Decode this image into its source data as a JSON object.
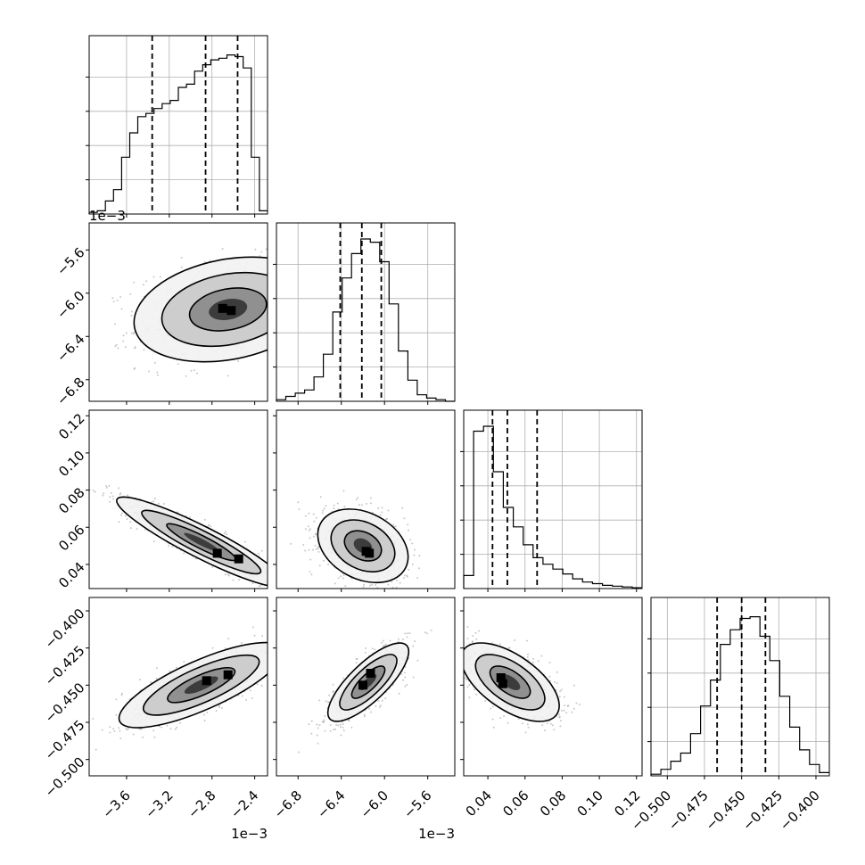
{
  "chart_data": {
    "type": "corner",
    "panels_diagonal": 4,
    "grid": true,
    "parameters": [
      {
        "range": [
          -3.95,
          -2.28
        ],
        "ticks": [
          -3.6,
          -3.2,
          -2.8,
          -2.4
        ],
        "tick_labels": [
          "−3.6",
          "−3.2",
          "−2.8",
          "−2.4"
        ],
        "offset_label": "1e−3",
        "quantiles": [
          -3.36,
          -2.86,
          -2.56
        ]
      },
      {
        "range": [
          -7.0,
          -5.35
        ],
        "ticks": [
          -6.8,
          -6.4,
          -6.0,
          -5.6
        ],
        "tick_labels": [
          "−6.8",
          "−6.4",
          "−6.0",
          "−5.6"
        ],
        "offset_label": "1e−3",
        "quantiles": [
          -6.41,
          -6.21,
          -6.03
        ]
      },
      {
        "range": [
          0.027,
          0.123
        ],
        "ticks": [
          0.04,
          0.06,
          0.08,
          0.1,
          0.12
        ],
        "tick_labels": [
          "0.04",
          "0.06",
          "0.08",
          "0.10",
          "0.12"
        ],
        "offset_label": "",
        "quantiles": [
          0.0425,
          0.0505,
          0.0665
        ]
      },
      {
        "range": [
          -0.511,
          -0.391
        ],
        "ticks": [
          -0.5,
          -0.475,
          -0.45,
          -0.425,
          -0.4
        ],
        "tick_labels": [
          "−0.500",
          "−0.475",
          "−0.450",
          "−0.425",
          "−0.400"
        ],
        "offset_label": "",
        "quantiles": [
          -0.4665,
          -0.45,
          -0.434
        ]
      }
    ],
    "histograms": [
      [
        0.01,
        0.02,
        0.08,
        0.15,
        0.35,
        0.5,
        0.6,
        0.62,
        0.65,
        0.68,
        0.7,
        0.78,
        0.8,
        0.88,
        0.92,
        0.95,
        0.96,
        0.98,
        0.97,
        0.9,
        0.35,
        0.02
      ],
      [
        0.01,
        0.03,
        0.05,
        0.07,
        0.15,
        0.29,
        0.55,
        0.76,
        0.91,
        1.0,
        0.98,
        0.86,
        0.6,
        0.31,
        0.13,
        0.04,
        0.02,
        0.01,
        0.0
      ],
      [
        0.08,
        0.97,
        1.0,
        0.72,
        0.5,
        0.38,
        0.27,
        0.19,
        0.15,
        0.12,
        0.09,
        0.06,
        0.04,
        0.03,
        0.02,
        0.015,
        0.01,
        0.005
      ],
      [
        0.01,
        0.04,
        0.09,
        0.14,
        0.26,
        0.43,
        0.59,
        0.81,
        0.9,
        0.97,
        0.98,
        0.86,
        0.71,
        0.49,
        0.3,
        0.16,
        0.07,
        0.02
      ]
    ],
    "pairs": [
      {
        "x": 0,
        "y": 1,
        "center": [
          -2.65,
          -6.15
        ],
        "spread": [
          0.4,
          0.22
        ],
        "rho": 0.25,
        "peak": [
          [
            -2.62,
            -6.16
          ],
          [
            -2.7,
            -6.14
          ]
        ]
      },
      {
        "x": 0,
        "y": 2,
        "center": [
          -2.9,
          0.052
        ],
        "spread": [
          0.36,
          0.011
        ],
        "rho": -0.92,
        "peak": [
          [
            -2.75,
            0.046
          ],
          [
            -2.55,
            0.043
          ]
        ]
      },
      {
        "x": 0,
        "y": 3,
        "center": [
          -2.9,
          -0.45
        ],
        "spread": [
          0.35,
          0.013
        ],
        "rho": 0.78,
        "peak": [
          [
            -2.85,
            -0.447
          ],
          [
            -2.65,
            -0.443
          ]
        ]
      },
      {
        "x": 1,
        "y": 2,
        "center": [
          -6.2,
          0.05
        ],
        "spread": [
          0.19,
          0.009
        ],
        "rho": -0.3,
        "peak": [
          [
            -6.17,
            0.047
          ],
          [
            -6.14,
            0.046
          ]
        ]
      },
      {
        "x": 1,
        "y": 3,
        "center": [
          -6.15,
          -0.448
        ],
        "spread": [
          0.17,
          0.012
        ],
        "rho": 0.78,
        "peak": [
          [
            -6.13,
            -0.442
          ],
          [
            -6.2,
            -0.45
          ]
        ]
      },
      {
        "x": 2,
        "y": 3,
        "center": [
          0.052,
          -0.448
        ],
        "spread": [
          0.012,
          0.012
        ],
        "rho": -0.6,
        "peak": [
          [
            0.047,
            -0.445
          ],
          [
            0.048,
            -0.449
          ]
        ]
      }
    ]
  }
}
